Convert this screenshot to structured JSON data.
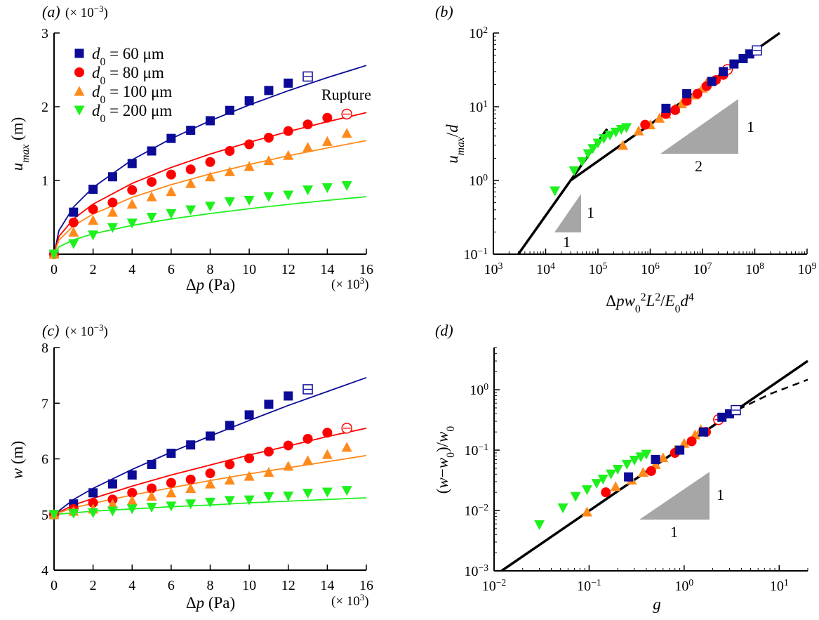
{
  "chart_data": [
    {
      "panel": "(a)",
      "type": "scatter",
      "multiplier_y": "(× 10^{−3})",
      "multiplier_x": "(× 10^{3})",
      "xlabel": "Δ*p* (Pa)",
      "ylabel": "*u*_{*max*} (m)",
      "xscale": "linear",
      "yscale": "linear",
      "xlim": [
        0,
        16
      ],
      "ylim": [
        0,
        3
      ],
      "xticks": [
        0,
        2,
        4,
        6,
        8,
        10,
        12,
        14,
        16
      ],
      "xtick_labels": [
        "0",
        "2",
        "4",
        "6",
        "8",
        "10",
        "12",
        "14",
        "16"
      ],
      "yticks": [
        1,
        2,
        3
      ],
      "ytick_labels": [
        "1",
        "2",
        "3"
      ],
      "legend": {
        "placement": "top-left"
      },
      "annotations": [
        {
          "text": "Rupture"
        }
      ],
      "series": [
        {
          "name": "*d*_{0} = 60 μm",
          "marker": "square",
          "color": "#0b0b98",
          "x": [
            0,
            1,
            2,
            3,
            4,
            5,
            6,
            7,
            8,
            9,
            10,
            11,
            12,
            13
          ],
          "y": [
            0,
            0.57,
            0.88,
            1.05,
            1.23,
            1.4,
            1.57,
            1.68,
            1.81,
            1.95,
            2.08,
            2.22,
            2.32,
            2.41
          ],
          "open_x": [
            13
          ],
          "fit": {
            "x": [
              0,
              0.25,
              1,
              2,
              4,
              6,
              8,
              10,
              12,
              14,
              16
            ],
            "y": [
              0,
              0.32,
              0.64,
              0.905,
              1.28,
              1.567,
              1.81,
              2.024,
              2.217,
              2.395,
              2.56
            ]
          }
        },
        {
          "name": "*d*_{0} = 80 μm",
          "marker": "circle",
          "color": "#ff0000",
          "x": [
            0,
            1,
            2,
            3,
            4,
            5,
            6,
            7,
            8,
            9,
            10,
            11,
            12,
            13,
            14,
            15
          ],
          "y": [
            0,
            0.43,
            0.61,
            0.7,
            0.87,
            0.98,
            1.08,
            1.15,
            1.25,
            1.4,
            1.49,
            1.58,
            1.67,
            1.76,
            1.85,
            1.9
          ],
          "open_x": [
            15
          ],
          "fit": {
            "x": [
              0,
              0.25,
              1,
              2,
              4,
              6,
              8,
              10,
              12,
              14,
              16
            ],
            "y": [
              0,
              0.24,
              0.48,
              0.679,
              0.96,
              1.176,
              1.358,
              1.518,
              1.663,
              1.796,
              1.92
            ]
          }
        },
        {
          "name": "*d*_{0} = 100 μm",
          "marker": "triangle-up",
          "color": "#ff8a1c",
          "x": [
            0,
            1,
            2,
            3,
            4,
            5,
            6,
            7,
            8,
            9,
            10,
            11,
            12,
            13,
            14,
            15
          ],
          "y": [
            0,
            0.3,
            0.46,
            0.57,
            0.68,
            0.78,
            0.85,
            0.96,
            1.05,
            1.12,
            1.19,
            1.27,
            1.34,
            1.45,
            1.53,
            1.64
          ],
          "open_x": [],
          "fit": {
            "x": [
              0,
              0.25,
              1,
              2,
              4,
              6,
              8,
              10,
              12,
              14,
              16
            ],
            "y": [
              0,
              0.19,
              0.385,
              0.544,
              0.77,
              0.943,
              1.089,
              1.217,
              1.334,
              1.441,
              1.54
            ]
          }
        },
        {
          "name": "*d*_{0} = 200 μm",
          "marker": "triangle-down",
          "color": "#1ef01e",
          "x": [
            0,
            1,
            2,
            3,
            4,
            5,
            6,
            7,
            8,
            9,
            10,
            11,
            12,
            13,
            14,
            15
          ],
          "y": [
            0,
            0.14,
            0.26,
            0.36,
            0.42,
            0.5,
            0.55,
            0.6,
            0.65,
            0.71,
            0.73,
            0.78,
            0.8,
            0.87,
            0.9,
            0.93
          ],
          "open_x": [],
          "fit": {
            "x": [
              0,
              0.25,
              1,
              2,
              4,
              6,
              8,
              10,
              12,
              14,
              16
            ],
            "y": [
              0,
              0.098,
              0.195,
              0.276,
              0.39,
              0.478,
              0.551,
              0.617,
              0.675,
              0.73,
              0.78
            ]
          }
        }
      ]
    },
    {
      "panel": "(b)",
      "type": "scatter",
      "xlabel": "Δ*pw*_{0}^{2}*L*^{2}/*E*_{0}*d*^{4}",
      "ylabel": "*u*_{*max*}/*d*",
      "xscale": "log",
      "yscale": "log",
      "xlim": [
        1000,
        1000000000
      ],
      "ylim": [
        0.1,
        100
      ],
      "xticks": [
        1000.0,
        10000.0,
        100000.0,
        1000000.0,
        10000000.0,
        100000000.0,
        1000000000.0
      ],
      "xtick_labels": [
        "10^{3}",
        "10^{4}",
        "10^{5}",
        "10^{6}",
        "10^{7}",
        "10^{8}",
        "10^{9}"
      ],
      "yticks": [
        0.1,
        1,
        10,
        100
      ],
      "ytick_labels": [
        "10^{−1}",
        "10^{0}",
        "10^{1}",
        "10^{2}"
      ],
      "annotations": [
        {
          "text": "1",
          "slope_triangle": "large-vertical"
        },
        {
          "text": "2",
          "slope_triangle": "large-horizontal"
        },
        {
          "text": "1",
          "slope_triangle": "small-vertical"
        },
        {
          "text": "1",
          "slope_triangle": "small-horizontal"
        }
      ],
      "lines": [
        {
          "style": "solid",
          "x": [
            3000,
            30000,
            300000000
          ],
          "y": [
            0.1,
            1,
            100
          ]
        },
        {
          "style": "solid",
          "x": [
            30000,
            150000
          ],
          "y": [
            1,
            5
          ]
        }
      ],
      "series": [
        {
          "marker": "triangle-down",
          "color": "#1ef01e",
          "x": [
            15000,
            35000,
            50000,
            65000,
            80000,
            100000,
            130000,
            170000,
            220000,
            280000,
            350000
          ],
          "y": [
            0.72,
            1.35,
            1.8,
            2.3,
            2.7,
            3.2,
            3.7,
            4.1,
            4.5,
            4.9,
            5.2
          ],
          "open_x": []
        },
        {
          "marker": "triangle-up",
          "color": "#ff8a1c",
          "x": [
            300000,
            600000,
            1000000,
            1500000,
            2000000,
            3000000,
            4000000,
            5000000,
            7000000,
            10000000,
            12000000
          ],
          "y": [
            3.0,
            4.7,
            5.7,
            7,
            8,
            9.5,
            11,
            12.5,
            14.5,
            18,
            21
          ],
          "open_x": []
        },
        {
          "marker": "circle",
          "color": "#ff0000",
          "x": [
            800000,
            2000000,
            3000000,
            5000000,
            8000000,
            12000000,
            18000000,
            25000000,
            30000000
          ],
          "y": [
            5.7,
            8,
            9,
            12,
            15,
            19,
            23,
            27,
            32
          ],
          "open_x": [
            30000000
          ]
        },
        {
          "marker": "square",
          "color": "#0b0b98",
          "x": [
            2000000,
            5000000,
            15000000,
            25000000,
            40000000,
            60000000,
            80000000,
            110000000
          ],
          "y": [
            9.5,
            15,
            22,
            30,
            38,
            45,
            52,
            58
          ],
          "open_x": [
            110000000
          ]
        }
      ]
    },
    {
      "panel": "(c)",
      "type": "scatter",
      "multiplier_y": "(× 10^{−3})",
      "multiplier_x": "(× 10^{3})",
      "xlabel": "Δ*p* (Pa)",
      "ylabel": "*w* (m)",
      "xscale": "linear",
      "yscale": "linear",
      "xlim": [
        0,
        16
      ],
      "ylim": [
        4,
        8
      ],
      "xticks": [
        0,
        2,
        4,
        6,
        8,
        10,
        12,
        14,
        16
      ],
      "xtick_labels": [
        "0",
        "2",
        "4",
        "6",
        "8",
        "10",
        "12",
        "14",
        "16"
      ],
      "yticks": [
        4,
        5,
        6,
        7,
        8
      ],
      "ytick_labels": [
        "4",
        "5",
        "6",
        "7",
        "8"
      ],
      "series": [
        {
          "marker": "square",
          "color": "#0b0b98",
          "x": [
            0,
            1,
            2,
            3,
            4,
            5,
            6,
            7,
            8,
            9,
            10,
            11,
            12,
            13
          ],
          "y": [
            5,
            5.19,
            5.39,
            5.55,
            5.71,
            5.9,
            6.1,
            6.25,
            6.41,
            6.6,
            6.79,
            6.98,
            7.13,
            7.25
          ],
          "open_x": [
            13
          ],
          "fit": {
            "x": [
              0,
              1,
              2,
              4,
              6,
              8,
              10,
              12,
              14,
              16
            ],
            "y": [
              5,
              5.27,
              5.47,
              5.81,
              6.12,
              6.41,
              6.69,
              6.96,
              7.21,
              7.46
            ]
          }
        },
        {
          "marker": "circle",
          "color": "#ff0000",
          "x": [
            0,
            1,
            2,
            3,
            4,
            5,
            6,
            7,
            8,
            9,
            10,
            11,
            12,
            13,
            14,
            15
          ],
          "y": [
            5,
            5.1,
            5.21,
            5.27,
            5.39,
            5.47,
            5.57,
            5.63,
            5.74,
            5.9,
            6.01,
            6.13,
            6.24,
            6.36,
            6.47,
            6.55
          ],
          "open_x": [
            15
          ],
          "fit": {
            "x": [
              0,
              1,
              2,
              4,
              6,
              8,
              10,
              12,
              14,
              16
            ],
            "y": [
              5,
              5.17,
              5.29,
              5.51,
              5.71,
              5.89,
              6.07,
              6.23,
              6.4,
              6.55
            ]
          }
        },
        {
          "marker": "triangle-up",
          "color": "#ff8a1c",
          "x": [
            0,
            1,
            2,
            3,
            4,
            5,
            6,
            7,
            8,
            9,
            10,
            11,
            12,
            13,
            14,
            15
          ],
          "y": [
            5,
            5.06,
            5.1,
            5.19,
            5.25,
            5.33,
            5.39,
            5.47,
            5.55,
            5.62,
            5.69,
            5.76,
            5.87,
            5.97,
            6.08,
            6.21
          ],
          "open_x": [],
          "fit": {
            "x": [
              0,
              1,
              2,
              4,
              6,
              8,
              10,
              12,
              14,
              16
            ],
            "y": [
              5,
              5.12,
              5.2,
              5.35,
              5.48,
              5.61,
              5.73,
              5.84,
              5.95,
              6.06
            ]
          }
        },
        {
          "marker": "triangle-down",
          "color": "#1ef01e",
          "x": [
            0,
            1,
            2,
            3,
            4,
            5,
            6,
            7,
            8,
            9,
            10,
            11,
            12,
            13,
            14,
            15
          ],
          "y": [
            5,
            5.02,
            5.03,
            5.06,
            5.1,
            5.13,
            5.15,
            5.19,
            5.22,
            5.25,
            5.26,
            5.32,
            5.33,
            5.38,
            5.4,
            5.43
          ],
          "open_x": [],
          "fit": {
            "x": [
              0,
              1,
              2,
              4,
              6,
              8,
              10,
              12,
              14,
              16
            ],
            "y": [
              5,
              5.03,
              5.06,
              5.1,
              5.14,
              5.17,
              5.21,
              5.24,
              5.27,
              5.3
            ]
          }
        }
      ]
    },
    {
      "panel": "(d)",
      "type": "scatter",
      "xlabel": "*g*",
      "ylabel": "(*w*−*w*_{0})/*w*_{0}",
      "xscale": "log",
      "yscale": "log",
      "xlim": [
        0.01,
        20
      ],
      "ylim": [
        0.001,
        5
      ],
      "xticks": [
        0.01,
        0.1,
        1,
        10
      ],
      "xtick_labels": [
        "10^{−2}",
        "10^{−1}",
        "10^{0}",
        "10^{1}"
      ],
      "yticks": [
        0.001,
        0.01,
        0.1,
        1
      ],
      "ytick_labels": [
        "10^{−3}",
        "10^{−2}",
        "10^{−1}",
        "10^{0}"
      ],
      "annotations": [
        {
          "text": "1",
          "slope_triangle": "vertical"
        },
        {
          "text": "1",
          "slope_triangle": "horizontal"
        }
      ],
      "lines": [
        {
          "style": "solid",
          "x": [
            0.012,
            20
          ],
          "y": [
            0.001,
            3.0
          ]
        },
        {
          "style": "dashed",
          "x": [
            0.012,
            1,
            3.5,
            8,
            20
          ],
          "y": [
            0.001,
            0.119,
            0.45,
            0.85,
            1.47
          ]
        }
      ],
      "series": [
        {
          "marker": "triangle-down",
          "color": "#1ef01e",
          "x": [
            0.03,
            0.053,
            0.072,
            0.095,
            0.12,
            0.14,
            0.17,
            0.2,
            0.25,
            0.3,
            0.35,
            0.4
          ],
          "y": [
            0.0058,
            0.011,
            0.017,
            0.022,
            0.028,
            0.033,
            0.04,
            0.048,
            0.058,
            0.068,
            0.077,
            0.085
          ],
          "open_x": []
        },
        {
          "marker": "triangle-up",
          "color": "#ff8a1c",
          "x": [
            0.095,
            0.19,
            0.28,
            0.37,
            0.5,
            0.6,
            0.8,
            1.0,
            1.3,
            1.5
          ],
          "y": [
            0.0095,
            0.025,
            0.032,
            0.043,
            0.058,
            0.075,
            0.1,
            0.13,
            0.18,
            0.22
          ],
          "open_x": []
        },
        {
          "marker": "circle",
          "color": "#ff0000",
          "x": [
            0.15,
            0.45,
            0.8,
            1.2,
            1.7,
            2.3
          ],
          "y": [
            0.02,
            0.045,
            0.09,
            0.14,
            0.2,
            0.32
          ],
          "open_x": [
            2.3
          ]
        },
        {
          "marker": "square",
          "color": "#0b0b98",
          "x": [
            0.26,
            0.5,
            0.9,
            1.6,
            2.5,
            3.0,
            3.5
          ],
          "y": [
            0.036,
            0.07,
            0.1,
            0.2,
            0.35,
            0.4,
            0.46
          ],
          "open_x": [
            3.5
          ]
        }
      ]
    }
  ]
}
